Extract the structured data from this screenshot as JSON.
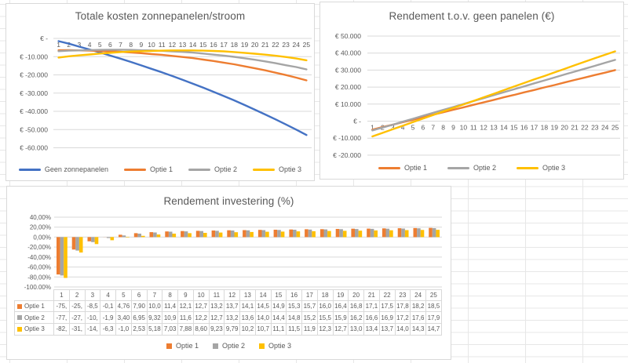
{
  "chart_data": [
    {
      "id": "totale-kosten",
      "type": "line",
      "title": "Totale kosten zonnepanelen/stroom",
      "x": [
        1,
        2,
        3,
        4,
        5,
        6,
        7,
        8,
        9,
        10,
        11,
        12,
        13,
        14,
        15,
        16,
        17,
        18,
        19,
        20,
        21,
        22,
        23,
        24,
        25
      ],
      "xlabel": "",
      "ylabel": "",
      "ylim": [
        -60000,
        0
      ],
      "grid": true,
      "legend_position": "bottom",
      "ytick_labels": [
        "€ -",
        "€ -10.000",
        "€ -20.000",
        "€ -30.000",
        "€ -40.000",
        "€ -50.000",
        "€ -60.000"
      ],
      "series": [
        {
          "name": "Geen zonnepanelen",
          "color": "#4472C4",
          "values": [
            -1500,
            -2900,
            -4500,
            -6100,
            -7700,
            -9400,
            -11100,
            -12900,
            -14800,
            -16700,
            -18600,
            -20600,
            -22700,
            -24800,
            -27000,
            -29300,
            -31600,
            -34000,
            -36500,
            -39100,
            -41700,
            -44400,
            -47200,
            -50000,
            -53000
          ]
        },
        {
          "name": "Optie 1",
          "color": "#ED7D31",
          "values": [
            -6500,
            -6400,
            -6600,
            -6700,
            -6900,
            -7100,
            -7300,
            -7700,
            -8100,
            -8600,
            -9000,
            -9600,
            -10200,
            -10800,
            -11600,
            -12400,
            -13300,
            -14200,
            -15300,
            -16400,
            -17500,
            -18800,
            -20100,
            -21500,
            -23000
          ]
        },
        {
          "name": "Optie 2",
          "color": "#A5A5A5",
          "values": [
            -7000,
            -6700,
            -6600,
            -6400,
            -6300,
            -6200,
            -6200,
            -6300,
            -6500,
            -6600,
            -6800,
            -7100,
            -7400,
            -7800,
            -8300,
            -8900,
            -9400,
            -10100,
            -10900,
            -11700,
            -12600,
            -13600,
            -14700,
            -15700,
            -17000
          ]
        },
        {
          "name": "Optie 3",
          "color": "#FFC000",
          "values": [
            -10500,
            -9800,
            -9300,
            -8800,
            -8300,
            -7900,
            -7500,
            -7200,
            -7000,
            -6900,
            -6700,
            -6600,
            -6600,
            -6600,
            -6700,
            -6900,
            -7100,
            -7500,
            -7900,
            -8400,
            -8900,
            -9500,
            -10200,
            -11000,
            -12000
          ]
        }
      ]
    },
    {
      "id": "rendement-euro",
      "type": "line",
      "title": "Rendement t.o.v. geen panelen (€)",
      "x": [
        1,
        2,
        3,
        4,
        5,
        6,
        7,
        8,
        9,
        10,
        11,
        12,
        13,
        14,
        15,
        16,
        17,
        18,
        19,
        20,
        21,
        22,
        23,
        24,
        25
      ],
      "xlabel": "",
      "ylabel": "",
      "ylim": [
        -20000,
        50000
      ],
      "grid": true,
      "legend_position": "bottom",
      "ytick_labels": [
        "€ 50.000",
        "€ 40.000",
        "€ 30.000",
        "€ 20.000",
        "€ 10.000",
        "€ -",
        "€ -10.000",
        "€ -20.000"
      ],
      "series": [
        {
          "name": "Optie 1",
          "color": "#ED7D31",
          "values": [
            -5000,
            -3500,
            -2100,
            -600,
            800,
            2300,
            3800,
            5200,
            6700,
            8100,
            9600,
            11000,
            12500,
            14000,
            15400,
            16900,
            18300,
            19800,
            21200,
            22700,
            24200,
            25600,
            27100,
            28500,
            30000
          ]
        },
        {
          "name": "Optie 2",
          "color": "#A5A5A5",
          "values": [
            -5500,
            -3800,
            -2100,
            -300,
            1400,
            3200,
            4900,
            6600,
            8300,
            10100,
            11800,
            13500,
            15300,
            17000,
            18700,
            20400,
            22200,
            23900,
            25600,
            27400,
            29100,
            30800,
            32500,
            34300,
            36000
          ]
        },
        {
          "name": "Optie 3",
          "color": "#FFC000",
          "values": [
            -9000,
            -6900,
            -4800,
            -2700,
            -600,
            1500,
            3600,
            5700,
            7800,
            9800,
            11900,
            14000,
            16100,
            18200,
            20300,
            22400,
            24500,
            26500,
            28600,
            30700,
            32800,
            34900,
            37000,
            39000,
            41000
          ]
        }
      ]
    },
    {
      "id": "rendement-pct",
      "type": "bar",
      "title": "Rendement investering (%)",
      "x": [
        1,
        2,
        3,
        4,
        5,
        6,
        7,
        8,
        9,
        10,
        11,
        12,
        13,
        14,
        15,
        16,
        17,
        18,
        19,
        20,
        21,
        22,
        23,
        24,
        25
      ],
      "xlabel": "",
      "ylabel": "",
      "ylim": [
        -100,
        40
      ],
      "grid": true,
      "legend_position": "bottom",
      "ytick_labels": [
        "40,00%",
        "20,00%",
        "0,00%",
        "-20,00%",
        "-40,00%",
        "-60,00%",
        "-80,00%",
        "-100,00%"
      ],
      "series": [
        {
          "name": "Optie 1",
          "color": "#ED7D31",
          "values": [
            -75,
            -25,
            -8.5,
            -0.1,
            4.76,
            7.9,
            10.0,
            11.4,
            12.1,
            12.7,
            13.2,
            13.7,
            14.1,
            14.5,
            14.9,
            15.3,
            15.7,
            16.0,
            16.4,
            16.8,
            17.1,
            17.5,
            17.8,
            18.2,
            18.5
          ]
        },
        {
          "name": "Optie 2",
          "color": "#A5A5A5",
          "values": [
            -77,
            -27,
            -10,
            -1.9,
            3.4,
            6.95,
            9.32,
            10.9,
            11.6,
            12.2,
            12.7,
            13.2,
            13.6,
            14.0,
            14.4,
            14.8,
            15.2,
            15.5,
            15.9,
            16.2,
            16.6,
            16.9,
            17.2,
            17.6,
            17.9
          ]
        },
        {
          "name": "Optie 3",
          "color": "#FFC000",
          "values": [
            -82,
            -31,
            -14,
            -6.3,
            -1.0,
            2.53,
            5.18,
            7.03,
            7.88,
            8.6,
            9.23,
            9.79,
            10.2,
            10.7,
            11.1,
            11.5,
            11.9,
            12.3,
            12.7,
            13.0,
            13.4,
            13.7,
            14.0,
            14.3,
            14.7
          ]
        }
      ],
      "table": {
        "corner": "",
        "header": [
          "1",
          "2",
          "3",
          "4",
          "5",
          "6",
          "7",
          "8",
          "9",
          "10",
          "11",
          "12",
          "13",
          "14",
          "15",
          "16",
          "17",
          "18",
          "19",
          "20",
          "21",
          "22",
          "23",
          "24",
          "25"
        ],
        "rows": [
          {
            "label": "Optie 1",
            "color": "#ED7D31",
            "cells": [
              "-75,",
              "-25,",
              "-8,5",
              "-0,1",
              "4,76",
              "7,90",
              "10,0",
              "11,4",
              "12,1",
              "12,7",
              "13,2",
              "13,7",
              "14,1",
              "14,5",
              "14,9",
              "15,3",
              "15,7",
              "16,0",
              "16,4",
              "16,8",
              "17,1",
              "17,5",
              "17,8",
              "18,2",
              "18,5"
            ]
          },
          {
            "label": "Optie 2",
            "color": "#A5A5A5",
            "cells": [
              "-77,",
              "-27,",
              "-10,",
              "-1,9",
              "3,40",
              "6,95",
              "9,32",
              "10,9",
              "11,6",
              "12,2",
              "12,7",
              "13,2",
              "13,6",
              "14,0",
              "14,4",
              "14,8",
              "15,2",
              "15,5",
              "15,9",
              "16,2",
              "16,6",
              "16,9",
              "17,2",
              "17,6",
              "17,9"
            ]
          },
          {
            "label": "Optie 3",
            "color": "#FFC000",
            "cells": [
              "-82,",
              "-31,",
              "-14,",
              "-6,3",
              "-1,0",
              "2,53",
              "5,18",
              "7,03",
              "7,88",
              "8,60",
              "9,23",
              "9,79",
              "10,2",
              "10,7",
              "11,1",
              "11,5",
              "11,9",
              "12,3",
              "12,7",
              "13,0",
              "13,4",
              "13,7",
              "14,0",
              "14,3",
              "14,7"
            ]
          }
        ]
      }
    }
  ]
}
